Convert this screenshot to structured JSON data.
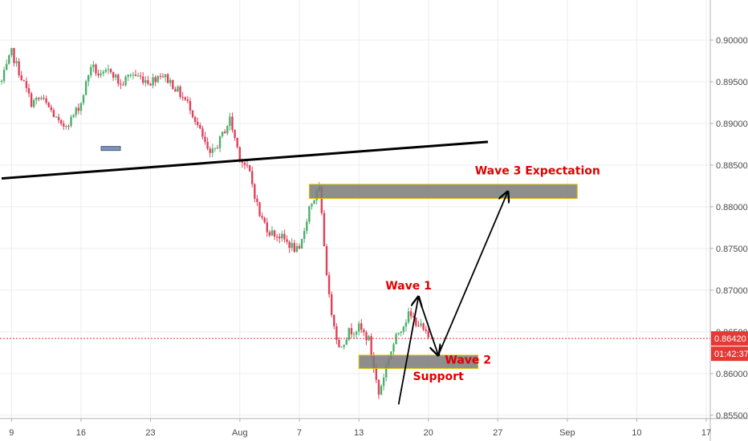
{
  "chart_data": {
    "type": "candlestick",
    "colors": {
      "up": "#4caf6a",
      "down": "#e0405a",
      "zone_fill": "#7a7a7a",
      "zone_border": "#e0c000",
      "annotation": "#e00000",
      "price_line": "#e03030",
      "grid": "#ededf0",
      "trendline": "#000000",
      "arrow": "#000000",
      "tag_bg": "#e53935"
    },
    "x_axis": {
      "range": [
        "2018-07-08",
        "2018-09-17"
      ],
      "ticks": [
        {
          "date": "2018-07-09",
          "label": "9"
        },
        {
          "date": "2018-07-16",
          "label": "16"
        },
        {
          "date": "2018-07-23",
          "label": "23"
        },
        {
          "date": "2018-08-01",
          "label": "Aug"
        },
        {
          "date": "2018-08-07",
          "label": "7"
        },
        {
          "date": "2018-08-13",
          "label": "13"
        },
        {
          "date": "2018-08-20",
          "label": "20"
        },
        {
          "date": "2018-08-27",
          "label": "27"
        },
        {
          "date": "2018-09-03",
          "label": "Sep"
        },
        {
          "date": "2018-09-10",
          "label": "10"
        },
        {
          "date": "2018-09-17",
          "label": "17"
        }
      ]
    },
    "y_axis": {
      "range": [
        0.8545,
        0.9025
      ],
      "ticks": [
        "0.90000",
        "0.89500",
        "0.89000",
        "0.88500",
        "0.88000",
        "0.87500",
        "0.87000",
        "0.86500",
        "0.86000",
        "0.85500"
      ]
    },
    "grid": true,
    "price_line": {
      "value": 0.8642
    },
    "price_tag": {
      "price": "0.86420",
      "countdown": "01:42:37"
    },
    "path": [
      [
        "2018-07-08",
        0.895
      ],
      [
        "2018-07-09",
        0.8985
      ],
      [
        "2018-07-10",
        0.8955
      ],
      [
        "2018-07-11",
        0.8925
      ],
      [
        "2018-07-12",
        0.893
      ],
      [
        "2018-07-13",
        0.8915
      ],
      [
        "2018-07-14",
        0.8895
      ],
      [
        "2018-07-15",
        0.8905
      ],
      [
        "2018-07-16",
        0.8925
      ],
      [
        "2018-07-17",
        0.897
      ],
      [
        "2018-07-18",
        0.8955
      ],
      [
        "2018-07-19",
        0.8965
      ],
      [
        "2018-07-20",
        0.8945
      ],
      [
        "2018-07-21",
        0.896
      ],
      [
        "2018-07-22",
        0.8955
      ],
      [
        "2018-07-23",
        0.895
      ],
      [
        "2018-07-24",
        0.896
      ],
      [
        "2018-07-25",
        0.895
      ],
      [
        "2018-07-26",
        0.8935
      ],
      [
        "2018-07-27",
        0.892
      ],
      [
        "2018-07-28",
        0.889
      ],
      [
        "2018-07-29",
        0.886
      ],
      [
        "2018-07-30",
        0.888
      ],
      [
        "2018-07-31",
        0.8905
      ],
      [
        "2018-08-01",
        0.886
      ],
      [
        "2018-08-02",
        0.884
      ],
      [
        "2018-08-03",
        0.879
      ],
      [
        "2018-08-04",
        0.877
      ],
      [
        "2018-08-05",
        0.8765
      ],
      [
        "2018-08-06",
        0.8755
      ],
      [
        "2018-08-07",
        0.8745
      ],
      [
        "2018-08-08",
        0.88
      ],
      [
        "2018-08-09",
        0.882
      ],
      [
        "2018-08-10",
        0.869
      ],
      [
        "2018-08-11",
        0.863
      ],
      [
        "2018-08-12",
        0.865
      ],
      [
        "2018-08-13",
        0.8655
      ],
      [
        "2018-08-14",
        0.864
      ],
      [
        "2018-08-15",
        0.8575
      ],
      [
        "2018-08-16",
        0.862
      ],
      [
        "2018-08-17",
        0.865
      ],
      [
        "2018-08-18",
        0.867
      ],
      [
        "2018-08-19",
        0.866
      ],
      [
        "2018-08-20",
        0.8642
      ]
    ],
    "zones": [
      {
        "from": "2018-08-08",
        "to": "2018-09-04",
        "low": 0.881,
        "high": 0.8827
      },
      {
        "from": "2018-08-13",
        "to": "2018-08-25",
        "low": 0.8606,
        "high": 0.8622
      }
    ],
    "trendline": {
      "from": [
        "2018-07-08",
        0.8834
      ],
      "to": [
        "2018-08-26",
        0.8878
      ]
    },
    "small_marker": {
      "date": "2018-07-19",
      "price": 0.887
    },
    "arrows": [
      {
        "from": [
          "2018-08-17",
          0.8563
        ],
        "to": [
          "2018-08-19",
          0.8692
        ]
      },
      {
        "from": [
          "2018-08-19",
          0.8692
        ],
        "to": [
          "2018-08-21",
          0.8622
        ]
      },
      {
        "from": [
          "2018-08-21",
          0.8622
        ],
        "to": [
          "2018-08-28",
          0.8818
        ]
      }
    ],
    "annotations": [
      {
        "text": "Wave 3 Expectation",
        "date": "2018-08-31",
        "price": 0.8839
      },
      {
        "text": "Wave 1",
        "date": "2018-08-18",
        "price": 0.8701
      },
      {
        "text": "Wave 2",
        "date": "2018-08-24",
        "price": 0.8612
      },
      {
        "text": "Support",
        "date": "2018-08-21",
        "price": 0.8592
      }
    ]
  }
}
